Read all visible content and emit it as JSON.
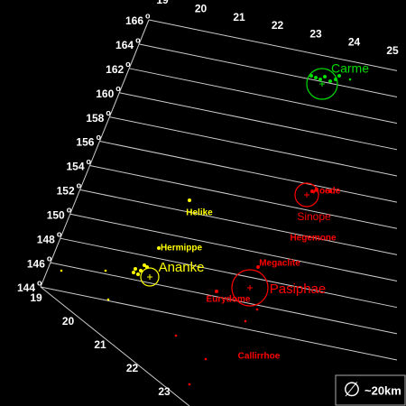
{
  "inclination_ticks": [
    "144",
    "146",
    "148",
    "150",
    "152",
    "154",
    "156",
    "158",
    "160",
    "162",
    "164",
    "166"
  ],
  "degree_mark": "o",
  "left_axis_ticks": [
    "19",
    "20",
    "21",
    "22",
    "23"
  ],
  "top_axis_ticks": [
    "19",
    "20",
    "21",
    "22",
    "23",
    "24",
    "25"
  ],
  "groups": [
    {
      "name": "Carme",
      "color": "#00dd00"
    },
    {
      "name": "Ananke",
      "color": "#ffff00"
    },
    {
      "name": "Pasiphae",
      "color": "#ff0000"
    },
    {
      "name": "Sinope",
      "color": "#ff0000"
    }
  ],
  "moons": [
    {
      "name": "Helike",
      "color": "#ffff00"
    },
    {
      "name": "Hermippe",
      "color": "#ffff00"
    },
    {
      "name": "Aoede",
      "color": "#ff0000"
    },
    {
      "name": "Hegemone",
      "color": "#ff0000"
    },
    {
      "name": "Megaclite",
      "color": "#ff0000"
    },
    {
      "name": "Eurydome",
      "color": "#ff0000"
    },
    {
      "name": "Callirrhoe",
      "color": "#ff0000"
    }
  ],
  "legend": {
    "symbol": "∅",
    "label": "~20km"
  }
}
